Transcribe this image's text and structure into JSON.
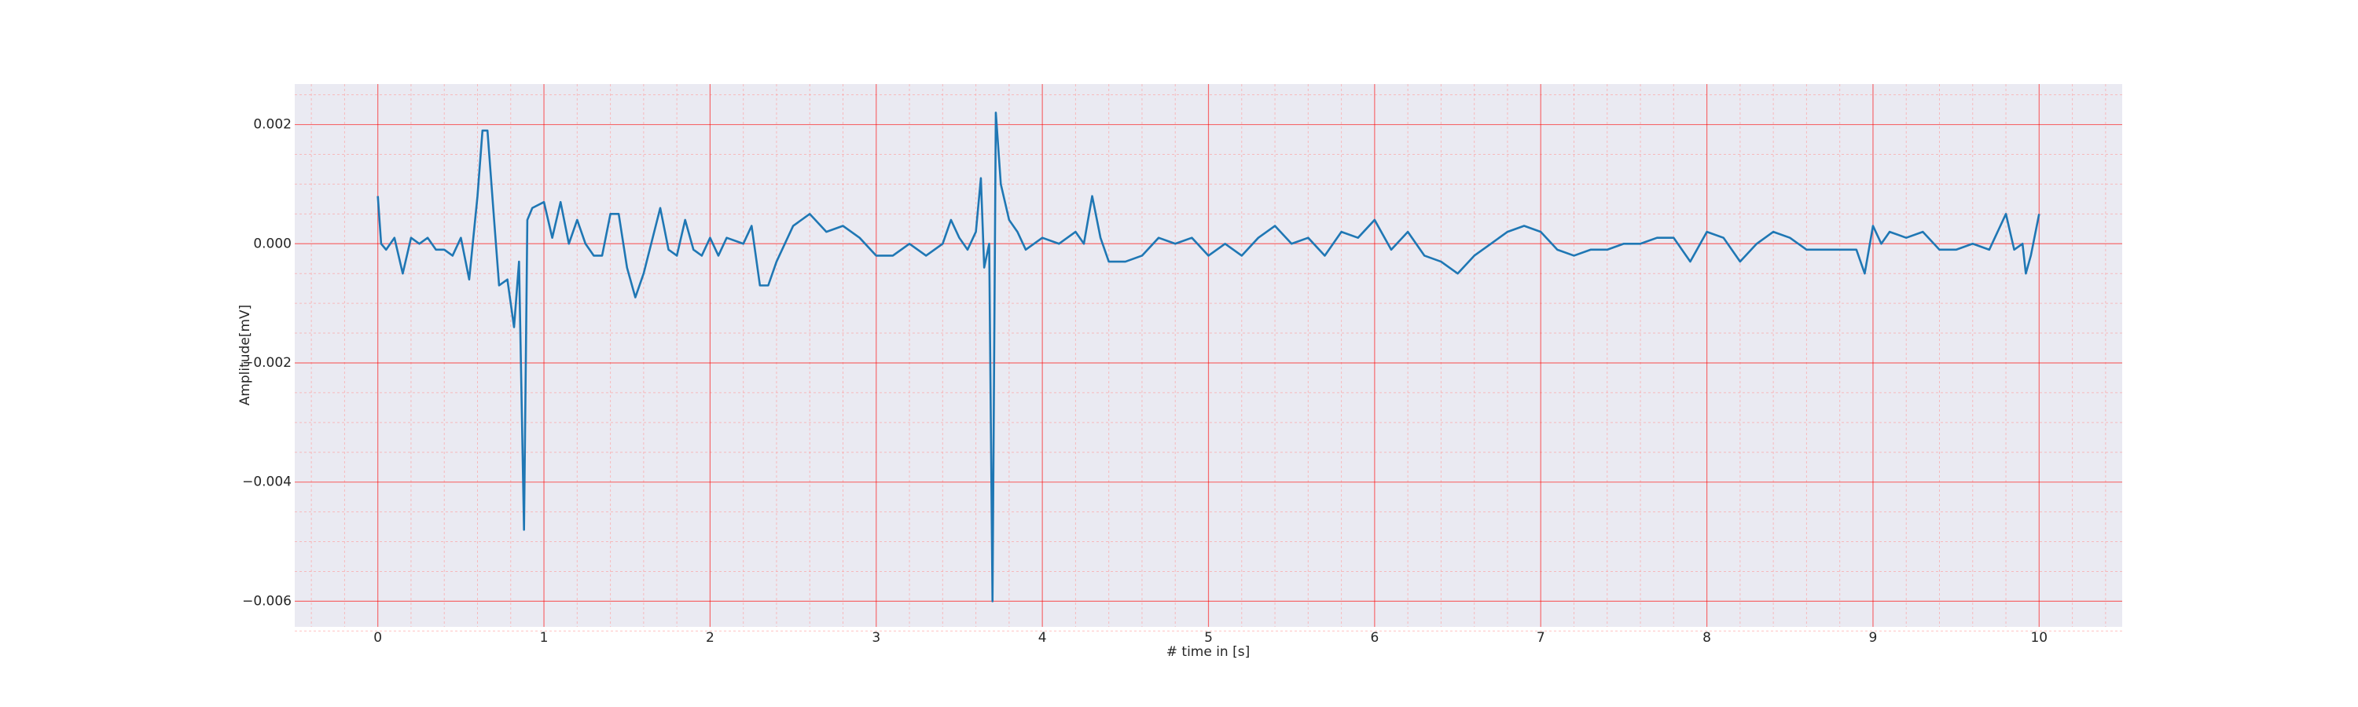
{
  "chart_data": {
    "type": "line",
    "xlabel": "# time in [s]",
    "ylabel": "Amplitude[mV]",
    "color": "#1f77b4",
    "background": "#eaeaf2",
    "grid": true,
    "grid_color": "#ff0000",
    "minor_grid_color": "#ff9999",
    "xlim": [
      -0.5,
      10.5
    ],
    "ylim": [
      -0.00643,
      0.00268
    ],
    "xticks": [
      0,
      1,
      2,
      3,
      4,
      5,
      6,
      7,
      8,
      9,
      10
    ],
    "yticks": [
      {
        "value": -0.006,
        "label": "−0.006"
      },
      {
        "value": -0.004,
        "label": "−0.004"
      },
      {
        "value": -0.002,
        "label": "−0.002"
      },
      {
        "value": 0,
        "label": "0.000"
      },
      {
        "value": 0.002,
        "label": "0.002"
      }
    ],
    "xminorticks": [
      -0.4,
      -0.2,
      0.2,
      0.4,
      0.6,
      0.8,
      1.2,
      1.4,
      1.6,
      1.8,
      2.2,
      2.4,
      2.6,
      2.8,
      3.2,
      3.4,
      3.6,
      3.8,
      4.2,
      4.4,
      4.6,
      4.8,
      5.2,
      5.4,
      5.6,
      5.8,
      6.2,
      6.4,
      6.6,
      6.8,
      7.2,
      7.4,
      7.6,
      7.8,
      8.2,
      8.4,
      8.6,
      8.8,
      9.2,
      9.4,
      9.6,
      9.8,
      10.2,
      10.4
    ],
    "yminorticks": [
      -0.0065,
      -0.0055,
      -0.005,
      -0.0045,
      -0.0035,
      -0.003,
      -0.0025,
      -0.0015,
      -0.001,
      -0.0005,
      0.0005,
      0.001,
      0.0015,
      0.0025
    ],
    "x": [
      0,
      0.02,
      0.05,
      0.1,
      0.15,
      0.2,
      0.25,
      0.3,
      0.35,
      0.4,
      0.45,
      0.5,
      0.55,
      0.6,
      0.63,
      0.66,
      0.7,
      0.73,
      0.78,
      0.82,
      0.85,
      0.88,
      0.9,
      0.93,
      1.0,
      1.05,
      1.1,
      1.15,
      1.2,
      1.25,
      1.3,
      1.35,
      1.4,
      1.45,
      1.5,
      1.55,
      1.6,
      1.7,
      1.75,
      1.8,
      1.85,
      1.9,
      1.95,
      2.0,
      2.05,
      2.1,
      2.2,
      2.25,
      2.3,
      2.35,
      2.4,
      2.5,
      2.6,
      2.7,
      2.8,
      2.9,
      3.0,
      3.1,
      3.2,
      3.3,
      3.4,
      3.45,
      3.5,
      3.55,
      3.6,
      3.63,
      3.65,
      3.68,
      3.7,
      3.72,
      3.75,
      3.8,
      3.85,
      3.9,
      4.0,
      4.1,
      4.2,
      4.25,
      4.3,
      4.35,
      4.4,
      4.5,
      4.6,
      4.7,
      4.8,
      4.9,
      5.0,
      5.1,
      5.2,
      5.3,
      5.4,
      5.5,
      5.6,
      5.7,
      5.8,
      5.9,
      6.0,
      6.1,
      6.2,
      6.3,
      6.4,
      6.5,
      6.6,
      6.7,
      6.8,
      6.9,
      7.0,
      7.1,
      7.2,
      7.3,
      7.4,
      7.5,
      7.6,
      7.7,
      7.8,
      7.9,
      8.0,
      8.1,
      8.2,
      8.3,
      8.4,
      8.5,
      8.6,
      8.7,
      8.8,
      8.9,
      8.95,
      9.0,
      9.05,
      9.1,
      9.2,
      9.3,
      9.4,
      9.5,
      9.6,
      9.7,
      9.8,
      9.85,
      9.9,
      9.92,
      9.95,
      10.0
    ],
    "values": [
      0.0008,
      0.0,
      -0.0001,
      0.0001,
      -0.0005,
      0.0001,
      0.0,
      0.0001,
      -0.0001,
      -0.0001,
      -0.0002,
      0.0001,
      -0.0006,
      0.0008,
      0.0019,
      0.0019,
      0.0004,
      -0.0007,
      -0.0006,
      -0.0014,
      -0.0003,
      -0.0048,
      0.0004,
      0.0006,
      0.0007,
      0.0001,
      0.0007,
      0.0,
      0.0004,
      0.0,
      -0.0002,
      -0.0002,
      0.0005,
      0.0005,
      -0.0004,
      -0.0009,
      -0.0005,
      0.0006,
      -0.0001,
      -0.0002,
      0.0004,
      -0.0001,
      -0.0002,
      0.0001,
      -0.0002,
      0.0001,
      0.0,
      0.0003,
      -0.0007,
      -0.0007,
      -0.0003,
      0.0003,
      0.0005,
      0.0002,
      0.0003,
      0.0001,
      -0.0002,
      -0.0002,
      0.0,
      -0.0002,
      0.0,
      0.0004,
      0.0001,
      -0.0001,
      0.0002,
      0.0011,
      -0.0004,
      0.0,
      -0.006,
      0.0022,
      0.001,
      0.0004,
      0.0002,
      -0.0001,
      0.0001,
      0.0,
      0.0002,
      0.0,
      0.0008,
      0.0001,
      -0.0003,
      -0.0003,
      -0.0002,
      0.0001,
      0.0,
      0.0001,
      -0.0002,
      0.0,
      -0.0002,
      0.0001,
      0.0003,
      0.0,
      0.0001,
      -0.0002,
      0.0002,
      0.0001,
      0.0004,
      -0.0001,
      0.0002,
      -0.0002,
      -0.0003,
      -0.0005,
      -0.0002,
      0.0,
      0.0002,
      0.0003,
      0.0002,
      -0.0001,
      -0.0002,
      -0.0001,
      -0.0001,
      0.0,
      0.0,
      0.0001,
      0.0001,
      -0.0003,
      0.0002,
      0.0001,
      -0.0003,
      0.0,
      0.0002,
      0.0001,
      -0.0001,
      -0.0001,
      -0.0001,
      -0.0001,
      -0.0005,
      0.0003,
      0.0,
      0.0002,
      0.0001,
      0.0002,
      -0.0001,
      -0.0001,
      0.0,
      -0.0001,
      0.0005,
      -0.0001,
      0.0,
      -0.0005,
      -0.0002,
      0.0005
    ]
  }
}
